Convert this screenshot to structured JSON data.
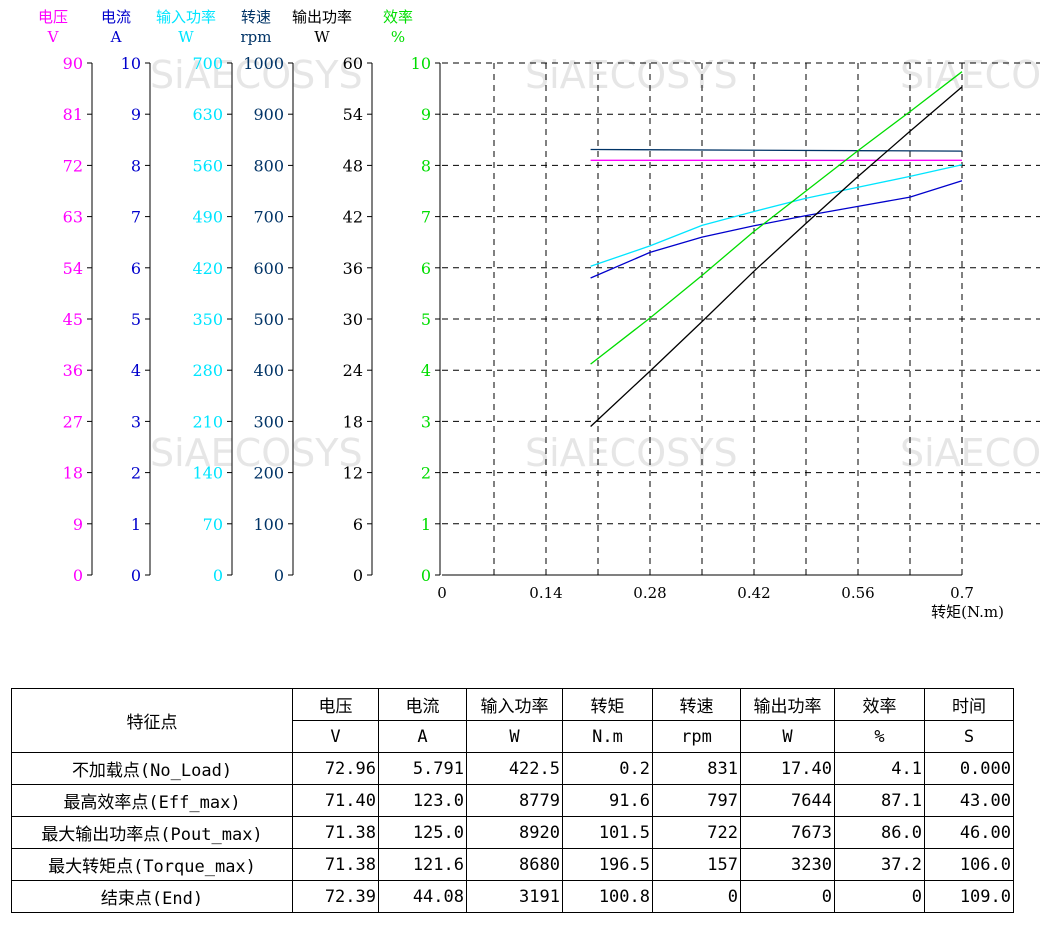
{
  "chart_data": {
    "type": "line",
    "xlabel": "转矩(N.m)",
    "x_ticks": [
      "0",
      "0.14",
      "0.28",
      "0.42",
      "0.56",
      "0.7"
    ],
    "xlim": [
      0,
      0.7
    ],
    "axes": [
      {
        "key": "voltage",
        "name": "电压",
        "unit": "V",
        "color": "#ff00ff",
        "max": 90,
        "ticks": [
          "0",
          "9",
          "18",
          "27",
          "36",
          "45",
          "54",
          "63",
          "72",
          "81",
          "90"
        ]
      },
      {
        "key": "current",
        "name": "电流",
        "unit": "A",
        "color": "#0000cc",
        "max": 10,
        "ticks": [
          "0",
          "1",
          "2",
          "3",
          "4",
          "5",
          "6",
          "7",
          "8",
          "9",
          "10"
        ]
      },
      {
        "key": "input_power",
        "name": "输入功率",
        "unit": "W",
        "color": "#00e5ff",
        "max": 700,
        "ticks": [
          "0",
          "70",
          "140",
          "210",
          "280",
          "350",
          "420",
          "490",
          "560",
          "630",
          "700"
        ]
      },
      {
        "key": "speed",
        "name": "转速",
        "unit": "rpm",
        "color": "#003366",
        "max": 1000,
        "ticks": [
          "0",
          "100",
          "200",
          "300",
          "400",
          "500",
          "600",
          "700",
          "800",
          "900",
          "1000"
        ]
      },
      {
        "key": "output_power",
        "name": "输出功率",
        "unit": "W",
        "color": "#000000",
        "max": 60,
        "ticks": [
          "0",
          "6",
          "12",
          "18",
          "24",
          "30",
          "36",
          "42",
          "48",
          "54",
          "60"
        ]
      },
      {
        "key": "efficiency",
        "name": "效率",
        "unit": "%",
        "color": "#00dd00",
        "max": 10,
        "ticks": [
          "0",
          "1",
          "2",
          "3",
          "4",
          "5",
          "6",
          "7",
          "8",
          "9",
          "10"
        ]
      }
    ],
    "series": [
      {
        "axis": "voltage",
        "x": [
          0.2,
          0.7
        ],
        "y": [
          72.9,
          72.9
        ]
      },
      {
        "axis": "current",
        "x": [
          0.2,
          0.28,
          0.35,
          0.42,
          0.49,
          0.56,
          0.63,
          0.7
        ],
        "y": [
          5.8,
          6.3,
          6.6,
          6.82,
          7.02,
          7.2,
          7.38,
          7.7
        ]
      },
      {
        "axis": "input_power",
        "x": [
          0.2,
          0.28,
          0.35,
          0.42,
          0.49,
          0.56,
          0.63,
          0.7
        ],
        "y": [
          422,
          450,
          478,
          497,
          515,
          530,
          545,
          561
        ]
      },
      {
        "axis": "speed",
        "x": [
          0.2,
          0.7
        ],
        "y": [
          831,
          828
        ]
      },
      {
        "axis": "output_power",
        "x": [
          0.2,
          0.28,
          0.35,
          0.42,
          0.49,
          0.56,
          0.63,
          0.7
        ],
        "y": [
          17.4,
          23.9,
          29.7,
          35.6,
          41.2,
          46.7,
          52.0,
          57.2
        ]
      },
      {
        "axis": "efficiency",
        "x": [
          0.2,
          0.28,
          0.35,
          0.42,
          0.49,
          0.56,
          0.63,
          0.7
        ],
        "y": [
          4.12,
          5.02,
          5.85,
          6.71,
          7.5,
          8.29,
          9.05,
          9.83
        ]
      }
    ],
    "grid": true,
    "watermark": "SiAECOSYS"
  },
  "table": {
    "corner_label": "特征点",
    "headers": [
      "电压",
      "电流",
      "输入功率",
      "转矩",
      "转速",
      "输出功率",
      "效率",
      "时间"
    ],
    "units": [
      "V",
      "A",
      "W",
      "N.m",
      "rpm",
      "W",
      "%",
      "S"
    ],
    "rows": [
      {
        "label": "不加载点(No_Load)",
        "values": [
          "72.96",
          "5.791",
          "422.5",
          "0.2",
          "831",
          "17.40",
          "4.1",
          "0.000"
        ]
      },
      {
        "label": "最高效率点(Eff_max)",
        "values": [
          "71.40",
          "123.0",
          "8779",
          "91.6",
          "797",
          "7644",
          "87.1",
          "43.00"
        ]
      },
      {
        "label": "最大输出功率点(Pout_max)",
        "values": [
          "71.38",
          "125.0",
          "8920",
          "101.5",
          "722",
          "7673",
          "86.0",
          "46.00"
        ]
      },
      {
        "label": "最大转矩点(Torque_max)",
        "values": [
          "71.38",
          "121.6",
          "8680",
          "196.5",
          "157",
          "3230",
          "37.2",
          "106.0"
        ]
      },
      {
        "label": "结束点(End)",
        "values": [
          "72.39",
          "44.08",
          "3191",
          "100.8",
          "0",
          "0",
          "0",
          "109.0"
        ]
      }
    ]
  }
}
